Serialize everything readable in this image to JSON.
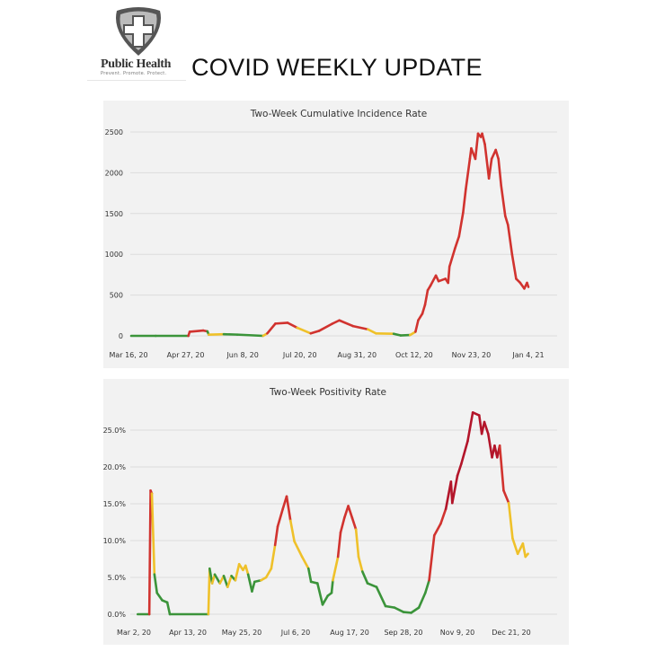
{
  "header": {
    "logo_text": "Public Health",
    "logo_tagline": "Prevent. Promote. Protect.",
    "title": "COVID WEEKLY UPDATE"
  },
  "colors": {
    "green": "#3b943a",
    "yellow": "#efc12a",
    "red": "#d1332f",
    "dark_red": "#b3152a",
    "panel": "#f2f2f2",
    "grid": "#dcdcdc"
  },
  "chart_data": [
    {
      "type": "line",
      "title": "Two-Week Cumulative Incidence Rate",
      "xlabel": "",
      "ylabel": "",
      "ylim": [
        0,
        2500
      ],
      "yticks": [
        "0",
        "500",
        "1000",
        "1500",
        "2000",
        "2500"
      ],
      "ytick_values": [
        0,
        500,
        1000,
        1500,
        2000,
        2500
      ],
      "xticks": [
        "Mar 16, 20",
        "Apr 27, 20",
        "Jun 8, 20",
        "Jul 20, 20",
        "Aug 31, 20",
        "Oct 12, 20",
        "Nov 23, 20",
        "Jan 4, 21"
      ],
      "xtick_dates": [
        "2020-03-16",
        "2020-04-27",
        "2020-06-08",
        "2020-07-20",
        "2020-08-31",
        "2020-10-12",
        "2020-11-23",
        "2021-01-04"
      ],
      "xlim": [
        "2020-03-16",
        "2021-01-04"
      ],
      "grid": true,
      "series": [
        {
          "points": [
            [
              "2020-03-18",
              0,
              "g"
            ],
            [
              "2020-04-05",
              0,
              "g"
            ],
            [
              "2020-04-29",
              0,
              "g"
            ],
            [
              "2020-04-30",
              50,
              "r"
            ],
            [
              "2020-05-10",
              65,
              "r"
            ],
            [
              "2020-05-13",
              55,
              "r"
            ],
            [
              "2020-05-14",
              15,
              "g"
            ],
            [
              "2020-05-25",
              20,
              "y"
            ],
            [
              "2020-06-04",
              15,
              "g"
            ],
            [
              "2020-06-23",
              0,
              "g"
            ],
            [
              "2020-06-26",
              30,
              "y"
            ],
            [
              "2020-07-02",
              150,
              "r"
            ],
            [
              "2020-07-11",
              160,
              "r"
            ],
            [
              "2020-07-18",
              100,
              "r"
            ],
            [
              "2020-07-28",
              30,
              "y"
            ],
            [
              "2020-08-03",
              60,
              "r"
            ],
            [
              "2020-08-13",
              150,
              "r"
            ],
            [
              "2020-08-18",
              190,
              "r"
            ],
            [
              "2020-08-28",
              120,
              "r"
            ],
            [
              "2020-09-08",
              80,
              "r"
            ],
            [
              "2020-09-14",
              30,
              "y"
            ],
            [
              "2020-09-27",
              25,
              "y"
            ],
            [
              "2020-10-02",
              5,
              "g"
            ],
            [
              "2020-10-09",
              10,
              "g"
            ],
            [
              "2020-10-13",
              50,
              "y"
            ],
            [
              "2020-10-15",
              190,
              "r"
            ],
            [
              "2020-10-18",
              270,
              "r"
            ],
            [
              "2020-10-20",
              380,
              "r"
            ],
            [
              "2020-10-22",
              560,
              "r"
            ],
            [
              "2020-10-24",
              615,
              "r"
            ],
            [
              "2020-10-28",
              740,
              "r"
            ],
            [
              "2020-10-30",
              670,
              "r"
            ],
            [
              "2020-11-04",
              700,
              "r"
            ],
            [
              "2020-11-06",
              650,
              "r"
            ],
            [
              "2020-11-07",
              850,
              "r"
            ],
            [
              "2020-11-11",
              1070,
              "r"
            ],
            [
              "2020-11-14",
              1220,
              "r"
            ],
            [
              "2020-11-17",
              1510,
              "r"
            ],
            [
              "2020-11-19",
              1800,
              "r"
            ],
            [
              "2020-11-22",
              2170,
              "r"
            ],
            [
              "2020-11-23",
              2300,
              "r"
            ],
            [
              "2020-11-26",
              2170,
              "r"
            ],
            [
              "2020-11-28",
              2480,
              "r"
            ],
            [
              "2020-11-30",
              2440,
              "r"
            ],
            [
              "2020-12-01",
              2480,
              "r"
            ],
            [
              "2020-12-03",
              2350,
              "r"
            ],
            [
              "2020-12-06",
              1930,
              "r"
            ],
            [
              "2020-12-08",
              2170,
              "r"
            ],
            [
              "2020-12-11",
              2280,
              "r"
            ],
            [
              "2020-12-13",
              2170,
              "r"
            ],
            [
              "2020-12-15",
              1840,
              "r"
            ],
            [
              "2020-12-18",
              1470,
              "r"
            ],
            [
              "2020-12-20",
              1360,
              "r"
            ],
            [
              "2020-12-23",
              1000,
              "r"
            ],
            [
              "2020-12-26",
              700,
              "r"
            ],
            [
              "2020-12-29",
              650,
              "r"
            ],
            [
              "2021-01-01",
              580,
              "r"
            ],
            [
              "2021-01-03",
              650,
              "r"
            ],
            [
              "2021-01-04",
              600,
              "r"
            ]
          ]
        }
      ]
    },
    {
      "type": "line",
      "title": "Two-Week Positivity Rate",
      "xlabel": "",
      "ylabel": "",
      "ylim": [
        0,
        25
      ],
      "yticks": [
        "0.0%",
        "5.0%",
        "10.0%",
        "15.0%",
        "20.0%",
        "25.0%"
      ],
      "ytick_values": [
        0,
        5,
        10,
        15,
        20,
        25
      ],
      "xticks": [
        "Mar 2, 20",
        "Apr 13, 20",
        "May 25, 20",
        "Jul 6, 20",
        "Aug 17, 20",
        "Sep 28, 20",
        "Nov 9, 20",
        "Dec 21, 20"
      ],
      "xtick_dates": [
        "2020-03-02",
        "2020-04-13",
        "2020-05-25",
        "2020-07-06",
        "2020-08-17",
        "2020-09-28",
        "2020-11-09",
        "2020-12-21"
      ],
      "xlim": [
        "2020-03-02",
        "2020-12-21"
      ],
      "grid": true,
      "series": [
        {
          "points": [
            [
              "2020-03-05",
              0,
              "g"
            ],
            [
              "2020-03-14",
              0,
              "g"
            ],
            [
              "2020-03-15",
              16.8,
              "r"
            ],
            [
              "2020-03-16",
              16.4,
              "r"
            ],
            [
              "2020-03-18",
              5.4,
              "y"
            ],
            [
              "2020-03-20",
              2.9,
              "g"
            ],
            [
              "2020-03-24",
              1.9,
              "g"
            ],
            [
              "2020-03-28",
              1.6,
              "g"
            ],
            [
              "2020-03-30",
              0,
              "g"
            ],
            [
              "2020-04-29",
              0,
              "g"
            ],
            [
              "2020-04-30",
              6.2,
              "y"
            ],
            [
              "2020-05-02",
              4.2,
              "g"
            ],
            [
              "2020-05-04",
              5.4,
              "y"
            ],
            [
              "2020-05-08",
              4.2,
              "g"
            ],
            [
              "2020-05-11",
              5.2,
              "y"
            ],
            [
              "2020-05-14",
              3.7,
              "g"
            ],
            [
              "2020-05-17",
              5.2,
              "y"
            ],
            [
              "2020-05-20",
              4.6,
              "g"
            ],
            [
              "2020-05-23",
              6.8,
              "y"
            ],
            [
              "2020-05-26",
              6.0,
              "y"
            ],
            [
              "2020-05-28",
              6.6,
              "y"
            ],
            [
              "2020-05-30",
              5.4,
              "y"
            ],
            [
              "2020-06-02",
              3.1,
              "g"
            ],
            [
              "2020-06-04",
              4.4,
              "g"
            ],
            [
              "2020-06-09",
              4.6,
              "g"
            ],
            [
              "2020-06-13",
              5.0,
              "y"
            ],
            [
              "2020-06-17",
              6.2,
              "y"
            ],
            [
              "2020-06-20",
              9.4,
              "y"
            ],
            [
              "2020-06-22",
              11.9,
              "r"
            ],
            [
              "2020-06-26",
              14.3,
              "r"
            ],
            [
              "2020-06-29",
              16.0,
              "r"
            ],
            [
              "2020-07-02",
              12.7,
              "r"
            ],
            [
              "2020-07-05",
              9.9,
              "y"
            ],
            [
              "2020-07-11",
              7.8,
              "y"
            ],
            [
              "2020-07-16",
              6.2,
              "y"
            ],
            [
              "2020-07-18",
              4.4,
              "g"
            ],
            [
              "2020-07-23",
              4.2,
              "g"
            ],
            [
              "2020-07-27",
              1.3,
              "g"
            ],
            [
              "2020-07-31",
              2.5,
              "g"
            ],
            [
              "2020-08-03",
              2.9,
              "g"
            ],
            [
              "2020-08-04",
              4.6,
              "g"
            ],
            [
              "2020-08-08",
              7.8,
              "y"
            ],
            [
              "2020-08-10",
              11.1,
              "r"
            ],
            [
              "2020-08-13",
              13.1,
              "r"
            ],
            [
              "2020-08-16",
              14.7,
              "r"
            ],
            [
              "2020-08-19",
              13.1,
              "r"
            ],
            [
              "2020-08-22",
              11.5,
              "r"
            ],
            [
              "2020-08-24",
              7.8,
              "y"
            ],
            [
              "2020-08-27",
              5.8,
              "y"
            ],
            [
              "2020-08-31",
              4.2,
              "g"
            ],
            [
              "2020-09-07",
              3.7,
              "g"
            ],
            [
              "2020-09-14",
              1.1,
              "g"
            ],
            [
              "2020-09-21",
              0.9,
              "g"
            ],
            [
              "2020-09-28",
              0.3,
              "g"
            ],
            [
              "2020-10-04",
              0.2,
              "g"
            ],
            [
              "2020-10-10",
              0.9,
              "g"
            ],
            [
              "2020-10-15",
              2.9,
              "g"
            ],
            [
              "2020-10-18",
              4.6,
              "g"
            ],
            [
              "2020-10-22",
              10.7,
              "r"
            ],
            [
              "2020-10-27",
              12.3,
              "r"
            ],
            [
              "2020-10-31",
              14.3,
              "r"
            ],
            [
              "2020-11-04",
              18.0,
              "d"
            ],
            [
              "2020-11-05",
              15.1,
              "d"
            ],
            [
              "2020-11-09",
              18.8,
              "d"
            ],
            [
              "2020-11-12",
              20.4,
              "d"
            ],
            [
              "2020-11-17",
              23.5,
              "d"
            ],
            [
              "2020-11-21",
              27.4,
              "d"
            ],
            [
              "2020-11-26",
              27.0,
              "d"
            ],
            [
              "2020-11-28",
              24.5,
              "d"
            ],
            [
              "2020-11-30",
              26.1,
              "d"
            ],
            [
              "2020-12-03",
              24.5,
              "d"
            ],
            [
              "2020-12-06",
              21.3,
              "d"
            ],
            [
              "2020-12-08",
              22.9,
              "d"
            ],
            [
              "2020-12-10",
              21.3,
              "d"
            ],
            [
              "2020-12-12",
              22.9,
              "d"
            ],
            [
              "2020-12-15",
              16.8,
              "r"
            ],
            [
              "2020-12-19",
              15.1,
              "r"
            ],
            [
              "2020-12-22",
              10.3,
              "y"
            ],
            [
              "2020-12-26",
              8.2,
              "y"
            ],
            [
              "2020-12-30",
              9.6,
              "y"
            ],
            [
              "2021-01-01",
              7.8,
              "y"
            ],
            [
              "2021-01-03",
              8.2,
              "y"
            ]
          ]
        }
      ]
    }
  ]
}
